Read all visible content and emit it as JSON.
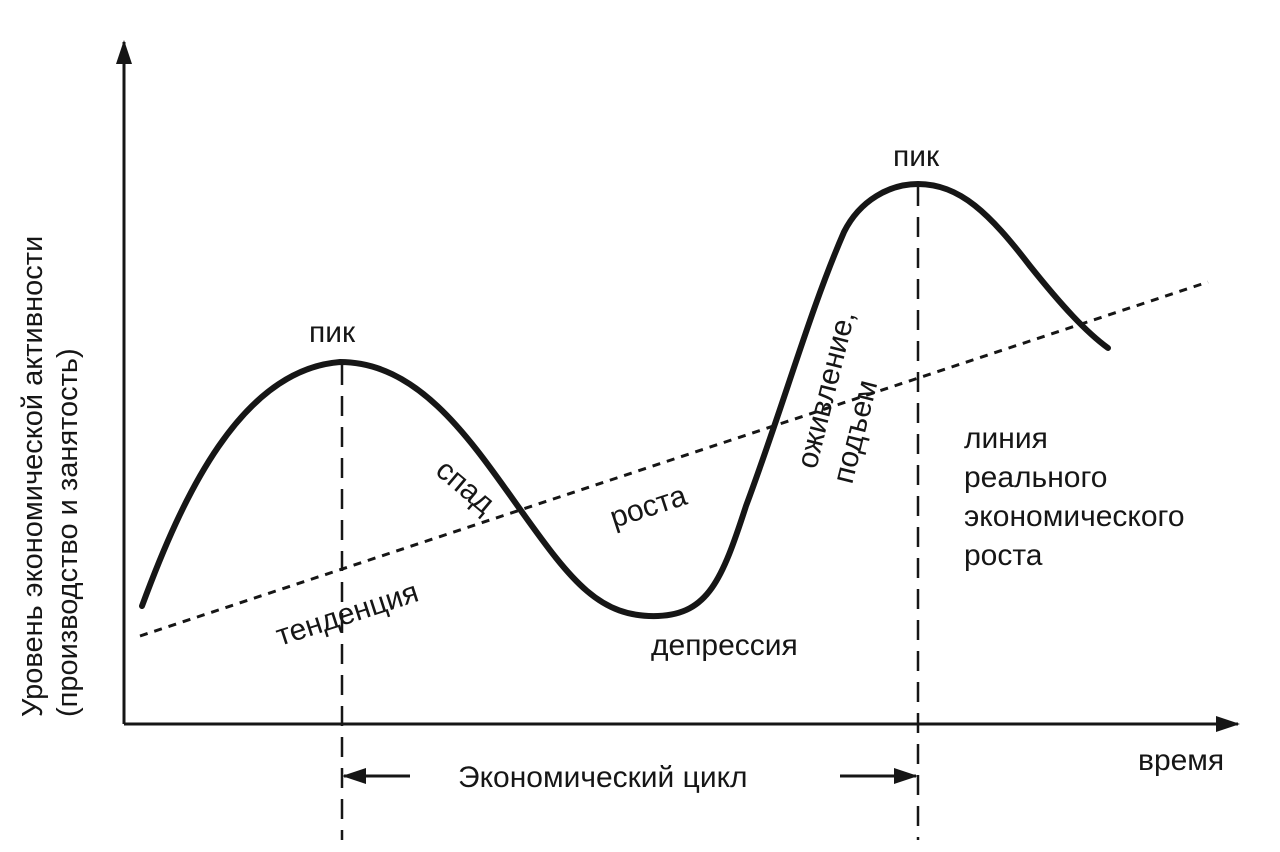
{
  "axes": {
    "y_label_line1": "Уровень экономической активности",
    "y_label_line2": "(производство и занятость)",
    "x_label": "время"
  },
  "labels": {
    "peak_left": "пик",
    "peak_right": "пик",
    "recession": "спад",
    "depression": "депрессия",
    "recovery_line1": "оживление,",
    "recovery_line2": "подъем",
    "trend_word1": "тенденция",
    "trend_word2": "роста",
    "growth_line1": "линия",
    "growth_line2": "реального",
    "growth_line3": "экономического",
    "growth_line4": "роста",
    "cycle": "Экономический цикл"
  },
  "colors": {
    "ink": "#161616",
    "background": "#ffffff"
  }
}
